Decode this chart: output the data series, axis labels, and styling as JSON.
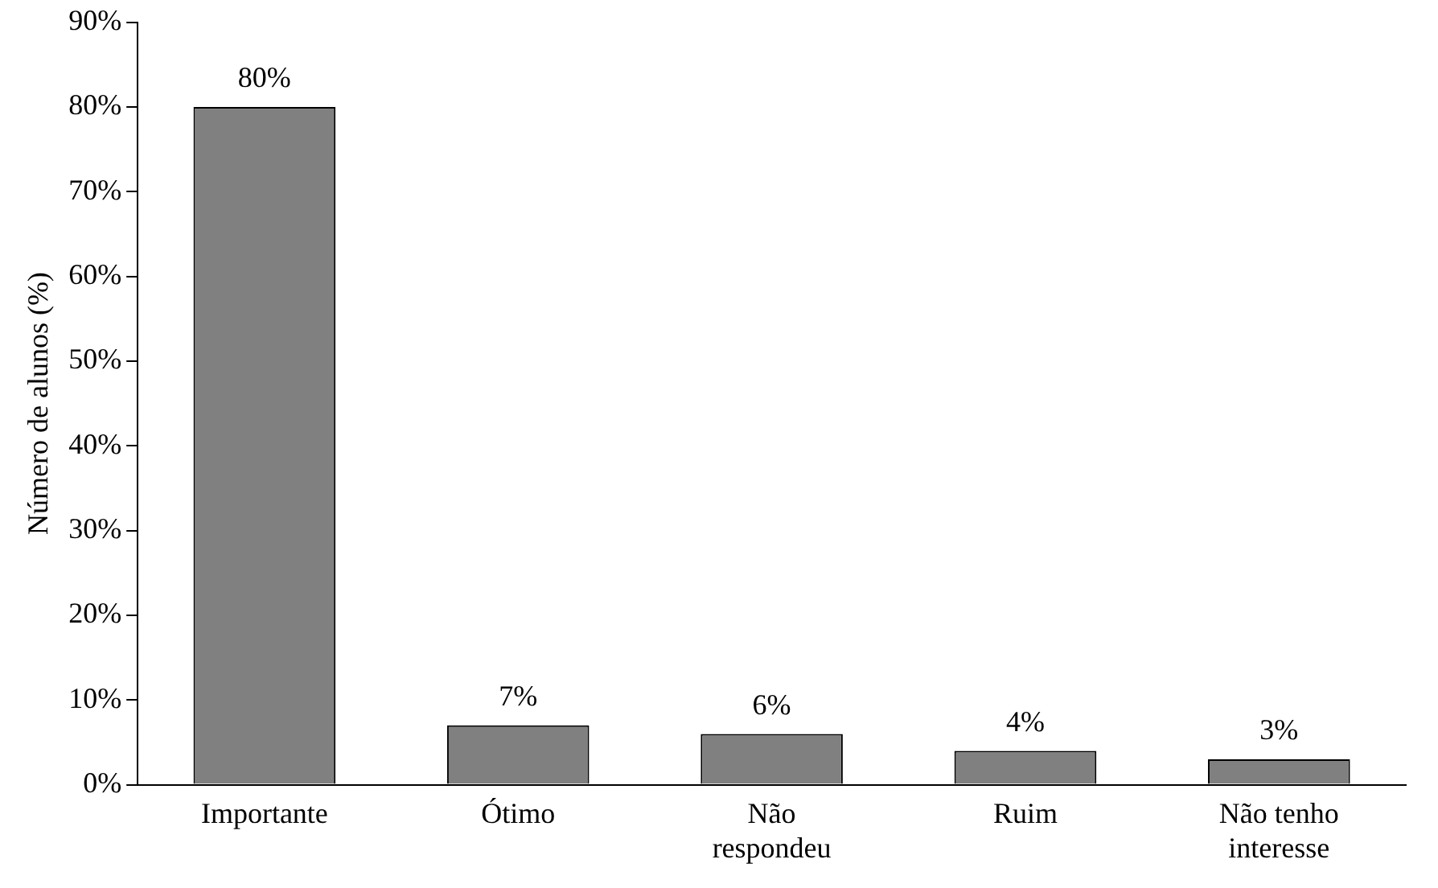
{
  "chart_data": {
    "type": "bar",
    "ylabel": "Número de alunos (%)",
    "categories": [
      "Importante",
      "Ótimo",
      "Não respondeu",
      "Ruim",
      "Não tenho interesse"
    ],
    "values": [
      80,
      7,
      6,
      4,
      3
    ],
    "value_labels": [
      "80%",
      "7%",
      "6%",
      "4%",
      "3%"
    ],
    "color": "#808080",
    "ylim": [
      0,
      90
    ],
    "yticks": [
      {
        "value": 0,
        "label": "0%"
      },
      {
        "value": 10,
        "label": "10%"
      },
      {
        "value": 20,
        "label": "20%"
      },
      {
        "value": 30,
        "label": "30%"
      },
      {
        "value": 40,
        "label": "40%"
      },
      {
        "value": 50,
        "label": "50%"
      },
      {
        "value": 60,
        "label": "60%"
      },
      {
        "value": 70,
        "label": "70%"
      },
      {
        "value": 80,
        "label": "80%"
      },
      {
        "value": 90,
        "label": "90%"
      }
    ],
    "grid": false,
    "legend": false
  }
}
